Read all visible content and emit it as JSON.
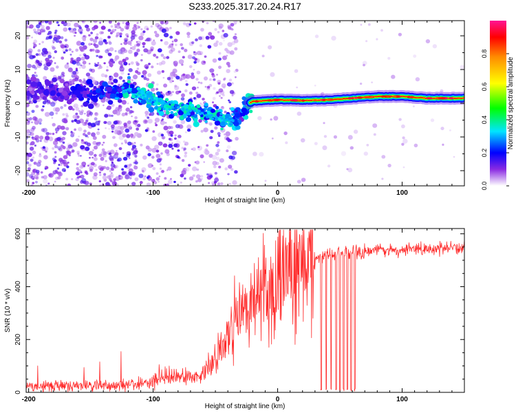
{
  "title": "S233.2025.317.20.24.R17",
  "chart_data": [
    {
      "type": "heatmap",
      "title": "S233.2025.317.20.24.R17",
      "xlabel": "Height of straight line (km)",
      "ylabel": "Frequency (Hz)",
      "xlim": [
        -202,
        150
      ],
      "ylim": [
        -24.5,
        24.5
      ],
      "x_ticks": [
        -200,
        -100,
        0,
        100
      ],
      "y_ticks": [
        -20,
        -10,
        0,
        10,
        20
      ],
      "colorbar": {
        "label": "Normalized spectral amplitude",
        "range": [
          0,
          1
        ],
        "ticks": [
          0.0,
          0.2,
          0.4,
          0.6,
          0.8
        ],
        "colors": [
          "#ffffff",
          "#8a2be2",
          "#0000ff",
          "#00e5ff",
          "#00ff00",
          "#ffff00",
          "#ff8c00",
          "#ff0000",
          "#ff1493"
        ]
      },
      "signal_track": {
        "x": [
          -200,
          -180,
          -160,
          -140,
          -120,
          -100,
          -80,
          -60,
          -40,
          -30,
          -25,
          -20,
          0,
          20,
          40,
          60,
          80,
          100,
          120,
          150
        ],
        "frequency": [
          4,
          3.5,
          3,
          3,
          4,
          1,
          -2,
          -3,
          -5,
          -4,
          -0.5,
          0.5,
          1,
          0.8,
          1,
          1.5,
          2,
          2,
          1.5,
          1.5
        ],
        "amplitude": [
          0.12,
          0.14,
          0.16,
          0.2,
          0.3,
          0.35,
          0.35,
          0.3,
          0.35,
          0.2,
          0.3,
          0.8,
          0.9,
          0.85,
          0.75,
          0.8,
          0.95,
          0.85,
          0.9,
          0.9
        ]
      }
    },
    {
      "type": "line",
      "title": "",
      "xlabel": "Height of straight line (km)",
      "ylabel": "SNR (10 * v/v)",
      "xlim": [
        -202,
        150
      ],
      "ylim": [
        0,
        620
      ],
      "x_ticks": [
        -200,
        -100,
        0,
        100
      ],
      "y_ticks": [
        0,
        200,
        400,
        600
      ],
      "color": "#ff2a2a",
      "series": [
        {
          "name": "SNR",
          "x": [
            -200,
            -170,
            -140,
            -110,
            -90,
            -70,
            -60,
            -50,
            -40,
            -30,
            -20,
            -10,
            0,
            10,
            20,
            30,
            40,
            60,
            80,
            100,
            120,
            150
          ],
          "values": [
            20,
            25,
            25,
            30,
            60,
            55,
            70,
            130,
            220,
            280,
            320,
            380,
            420,
            460,
            490,
            510,
            520,
            530,
            535,
            540,
            545,
            545
          ]
        }
      ],
      "dropouts_x": [
        35,
        39,
        43,
        47,
        50,
        53,
        56,
        59,
        62
      ]
    }
  ]
}
